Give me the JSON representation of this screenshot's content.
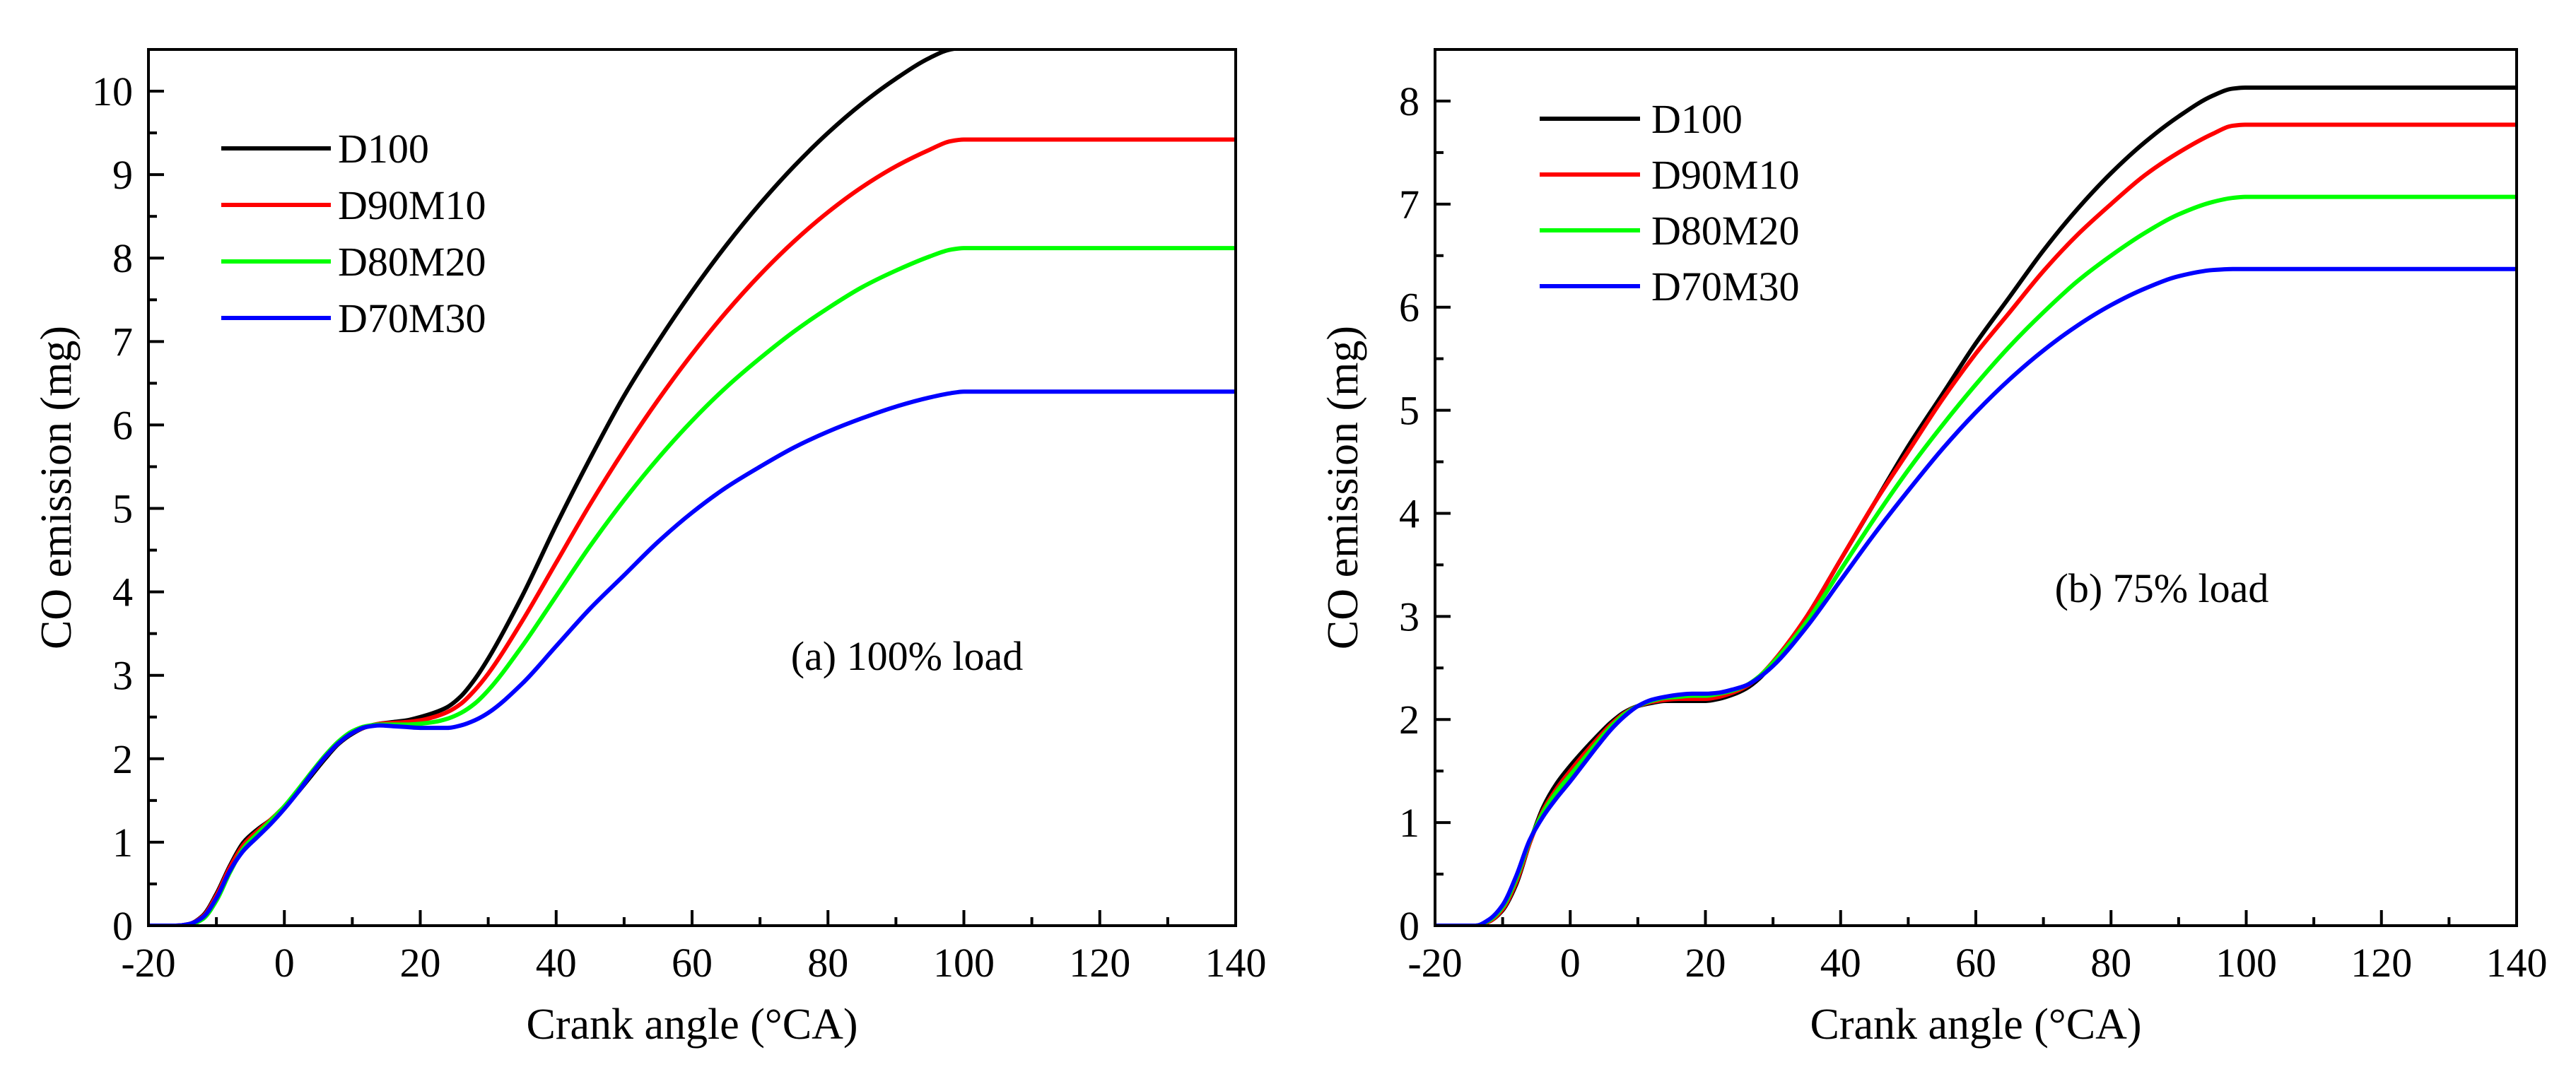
{
  "figure": {
    "description_labels": [
      "(a) 100% load",
      "(b) 75% load"
    ]
  },
  "chart_data": [
    {
      "type": "line",
      "panel": "a",
      "annotation": "(a) 100% load",
      "xlabel": "Crank angle (°CA)",
      "ylabel": "CO emission (mg)",
      "xlim": [
        -20,
        140
      ],
      "ylim": [
        0,
        10.5
      ],
      "xticks": [
        -20,
        0,
        20,
        40,
        60,
        80,
        100,
        120,
        140
      ],
      "xtick_labels": [
        "-20",
        "0",
        "20",
        "40",
        "60",
        "80",
        "100",
        "120",
        "140"
      ],
      "yticks": [
        0,
        1,
        2,
        3,
        4,
        5,
        6,
        7,
        8,
        9,
        10
      ],
      "ytick_labels": [
        "0",
        "1",
        "2",
        "3",
        "4",
        "5",
        "6",
        "7",
        "8",
        "9",
        "10"
      ],
      "legend_position": "top-left",
      "series": [
        {
          "name": "D100",
          "color": "#000000",
          "x": [
            -20,
            -16,
            -14,
            -12,
            -10,
            -8,
            -6,
            -4,
            -2,
            0,
            2,
            4,
            6,
            8,
            10,
            12,
            14,
            16,
            18,
            20,
            22,
            24,
            26,
            28,
            30,
            35,
            40,
            45,
            50,
            55,
            60,
            65,
            70,
            75,
            80,
            85,
            90,
            95,
            98,
            100,
            140
          ],
          "y": [
            0,
            0,
            0.02,
            0.12,
            0.38,
            0.72,
            1.0,
            1.15,
            1.27,
            1.42,
            1.6,
            1.8,
            2.0,
            2.18,
            2.3,
            2.38,
            2.42,
            2.44,
            2.46,
            2.5,
            2.55,
            2.62,
            2.75,
            2.95,
            3.2,
            3.95,
            4.8,
            5.6,
            6.35,
            7.0,
            7.6,
            8.15,
            8.65,
            9.1,
            9.5,
            9.85,
            10.15,
            10.4,
            10.5,
            10.52,
            10.52
          ]
        },
        {
          "name": "D90M10",
          "color": "#ff0000",
          "x": [
            -20,
            -16,
            -14,
            -12,
            -10,
            -8,
            -6,
            -4,
            -2,
            0,
            2,
            4,
            6,
            8,
            10,
            12,
            14,
            16,
            18,
            20,
            22,
            24,
            26,
            28,
            30,
            35,
            40,
            45,
            50,
            55,
            60,
            65,
            70,
            75,
            80,
            85,
            90,
            95,
            98,
            100,
            140
          ],
          "y": [
            0,
            0,
            0.02,
            0.11,
            0.36,
            0.7,
            0.97,
            1.13,
            1.27,
            1.43,
            1.62,
            1.82,
            2.02,
            2.19,
            2.31,
            2.38,
            2.42,
            2.43,
            2.44,
            2.46,
            2.5,
            2.56,
            2.66,
            2.82,
            3.02,
            3.65,
            4.35,
            5.05,
            5.7,
            6.3,
            6.85,
            7.35,
            7.8,
            8.2,
            8.55,
            8.85,
            9.1,
            9.3,
            9.4,
            9.42,
            9.42
          ]
        },
        {
          "name": "D80M20",
          "color": "#00ff00",
          "x": [
            -20,
            -16,
            -14,
            -12,
            -10,
            -8,
            -6,
            -4,
            -2,
            0,
            2,
            4,
            6,
            8,
            10,
            12,
            14,
            16,
            18,
            20,
            22,
            24,
            26,
            28,
            30,
            35,
            40,
            45,
            50,
            55,
            60,
            65,
            70,
            75,
            80,
            85,
            90,
            95,
            98,
            100,
            140
          ],
          "y": [
            0,
            0,
            0.01,
            0.08,
            0.3,
            0.64,
            0.93,
            1.1,
            1.26,
            1.43,
            1.63,
            1.84,
            2.04,
            2.21,
            2.33,
            2.39,
            2.41,
            2.41,
            2.41,
            2.42,
            2.44,
            2.48,
            2.55,
            2.66,
            2.82,
            3.35,
            3.95,
            4.55,
            5.1,
            5.6,
            6.05,
            6.45,
            6.8,
            7.12,
            7.4,
            7.65,
            7.85,
            8.02,
            8.1,
            8.12,
            8.12
          ]
        },
        {
          "name": "D70M30",
          "color": "#0000ff",
          "x": [
            -20,
            -16,
            -14,
            -12,
            -10,
            -8,
            -6,
            -4,
            -2,
            0,
            2,
            4,
            6,
            8,
            10,
            12,
            14,
            16,
            18,
            20,
            22,
            24,
            26,
            28,
            30,
            35,
            40,
            45,
            50,
            55,
            60,
            65,
            70,
            75,
            80,
            85,
            90,
            95,
            98,
            100,
            140
          ],
          "y": [
            0,
            0,
            0.02,
            0.1,
            0.33,
            0.66,
            0.9,
            1.06,
            1.22,
            1.4,
            1.6,
            1.82,
            2.02,
            2.19,
            2.31,
            2.38,
            2.4,
            2.39,
            2.38,
            2.37,
            2.37,
            2.37,
            2.4,
            2.46,
            2.55,
            2.9,
            3.35,
            3.8,
            4.2,
            4.6,
            4.95,
            5.25,
            5.5,
            5.73,
            5.92,
            6.08,
            6.22,
            6.33,
            6.38,
            6.4,
            6.4
          ]
        }
      ]
    },
    {
      "type": "line",
      "panel": "b",
      "annotation": "(b) 75% load",
      "xlabel": "Crank angle (°CA)",
      "ylabel": "CO emission (mg)",
      "xlim": [
        -20,
        140
      ],
      "ylim": [
        0,
        8.5
      ],
      "xticks": [
        -20,
        0,
        20,
        40,
        60,
        80,
        100,
        120,
        140
      ],
      "xtick_labels": [
        "-20",
        "0",
        "20",
        "40",
        "60",
        "80",
        "100",
        "120",
        "140"
      ],
      "yticks": [
        0,
        1,
        2,
        3,
        4,
        5,
        6,
        7,
        8
      ],
      "ytick_labels": [
        "0",
        "1",
        "2",
        "3",
        "4",
        "5",
        "6",
        "7",
        "8"
      ],
      "legend_position": "top-left",
      "series": [
        {
          "name": "D100",
          "color": "#000000",
          "x": [
            -20,
            -14,
            -12,
            -10,
            -8,
            -6,
            -4,
            -2,
            0,
            2,
            4,
            6,
            8,
            10,
            12,
            14,
            16,
            18,
            20,
            22,
            24,
            26,
            28,
            30,
            35,
            40,
            45,
            50,
            55,
            60,
            65,
            70,
            75,
            80,
            85,
            90,
            95,
            98,
            100,
            140
          ],
          "y": [
            0,
            0,
            0.04,
            0.15,
            0.4,
            0.8,
            1.15,
            1.38,
            1.55,
            1.7,
            1.84,
            1.97,
            2.07,
            2.13,
            2.16,
            2.18,
            2.18,
            2.18,
            2.18,
            2.2,
            2.24,
            2.3,
            2.4,
            2.55,
            3.0,
            3.55,
            4.1,
            4.65,
            5.15,
            5.65,
            6.1,
            6.55,
            6.95,
            7.3,
            7.6,
            7.85,
            8.05,
            8.12,
            8.13,
            8.13
          ]
        },
        {
          "name": "D90M10",
          "color": "#ff0000",
          "x": [
            -20,
            -14,
            -12,
            -10,
            -8,
            -6,
            -4,
            -2,
            0,
            2,
            4,
            6,
            8,
            10,
            12,
            14,
            16,
            18,
            20,
            22,
            24,
            26,
            28,
            30,
            35,
            40,
            45,
            50,
            55,
            60,
            65,
            70,
            75,
            80,
            85,
            90,
            95,
            98,
            100,
            140
          ],
          "y": [
            0,
            0,
            0.04,
            0.16,
            0.42,
            0.8,
            1.12,
            1.33,
            1.5,
            1.66,
            1.81,
            1.95,
            2.06,
            2.13,
            2.17,
            2.19,
            2.2,
            2.2,
            2.2,
            2.22,
            2.26,
            2.32,
            2.42,
            2.56,
            3.0,
            3.55,
            4.1,
            4.6,
            5.1,
            5.55,
            5.95,
            6.35,
            6.7,
            7.0,
            7.28,
            7.5,
            7.68,
            7.76,
            7.77,
            7.77
          ]
        },
        {
          "name": "D80M20",
          "color": "#00ff00",
          "x": [
            -20,
            -14,
            -12,
            -10,
            -8,
            -6,
            -4,
            -2,
            0,
            2,
            4,
            6,
            8,
            10,
            12,
            14,
            16,
            18,
            20,
            22,
            24,
            26,
            28,
            30,
            35,
            40,
            45,
            50,
            55,
            60,
            65,
            70,
            75,
            80,
            85,
            90,
            95,
            98,
            100,
            140
          ],
          "y": [
            0,
            0,
            0.05,
            0.18,
            0.45,
            0.82,
            1.1,
            1.3,
            1.46,
            1.62,
            1.78,
            1.93,
            2.05,
            2.13,
            2.18,
            2.21,
            2.22,
            2.23,
            2.23,
            2.25,
            2.28,
            2.33,
            2.42,
            2.55,
            2.95,
            3.45,
            3.95,
            4.42,
            4.85,
            5.25,
            5.62,
            5.95,
            6.25,
            6.5,
            6.72,
            6.9,
            7.02,
            7.06,
            7.07,
            7.07
          ]
        },
        {
          "name": "D70M30",
          "color": "#0000ff",
          "x": [
            -20,
            -14,
            -12,
            -10,
            -8,
            -6,
            -4,
            -2,
            0,
            2,
            4,
            6,
            8,
            10,
            12,
            14,
            16,
            18,
            20,
            22,
            24,
            26,
            28,
            30,
            35,
            40,
            45,
            50,
            55,
            60,
            65,
            70,
            75,
            80,
            85,
            90,
            95,
            98,
            100,
            140
          ],
          "y": [
            0,
            0,
            0.06,
            0.2,
            0.48,
            0.83,
            1.06,
            1.24,
            1.4,
            1.57,
            1.74,
            1.9,
            2.03,
            2.13,
            2.19,
            2.22,
            2.24,
            2.25,
            2.25,
            2.26,
            2.29,
            2.33,
            2.41,
            2.52,
            2.9,
            3.35,
            3.8,
            4.22,
            4.62,
            4.98,
            5.3,
            5.58,
            5.82,
            6.02,
            6.18,
            6.3,
            6.36,
            6.37,
            6.37,
            6.37
          ]
        }
      ]
    }
  ]
}
